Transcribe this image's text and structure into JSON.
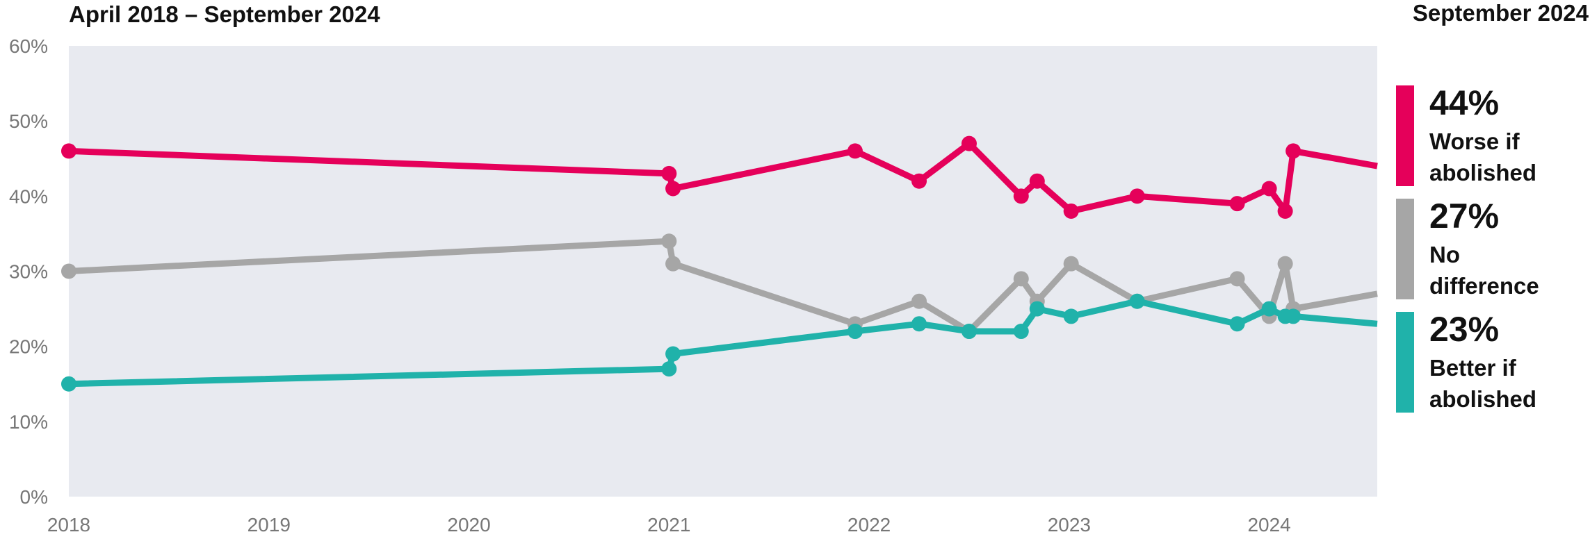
{
  "chart_data": {
    "type": "line",
    "title": "April 2018 – September 2024",
    "legend_title": "September 2024",
    "xlim": [
      2018,
      2024.54
    ],
    "xticks": [
      2018,
      2019,
      2020,
      2021,
      2022,
      2023,
      2024
    ],
    "ylim": [
      0,
      60
    ],
    "yticks": [
      {
        "value": 0,
        "label": "0%"
      },
      {
        "value": 10,
        "label": "10%"
      },
      {
        "value": 20,
        "label": "20%"
      },
      {
        "value": 30,
        "label": "30%"
      },
      {
        "value": 40,
        "label": "40%"
      },
      {
        "value": 50,
        "label": "50%"
      },
      {
        "value": 60,
        "label": "60%"
      }
    ],
    "x": [
      2018,
      2021.0,
      2021.02,
      2021.93,
      2022.25,
      2022.5,
      2022.76,
      2022.84,
      2023.01,
      2023.34,
      2023.84,
      2024.0,
      2024.08,
      2024.12,
      2024.54
    ],
    "series": [
      {
        "name": "Worse if abolished",
        "color": "#e5005a",
        "latest_label": "44%",
        "values": [
          46,
          43,
          41,
          46,
          42,
          47,
          40,
          42,
          38,
          40,
          39,
          41,
          38,
          46,
          44
        ]
      },
      {
        "name": "No difference",
        "color": "#a6a6a6",
        "latest_label": "27%",
        "values": [
          30,
          34,
          31,
          23,
          26,
          22,
          29,
          26,
          31,
          26,
          29,
          24,
          31,
          25,
          27
        ]
      },
      {
        "name": "Better if abolished",
        "color": "#20b2aa",
        "latest_label": "23%",
        "values": [
          15,
          17,
          19,
          22,
          23,
          22,
          22,
          25,
          24,
          26,
          23,
          25,
          24,
          24,
          23
        ]
      }
    ],
    "plot_background": "#e8eaf0"
  }
}
